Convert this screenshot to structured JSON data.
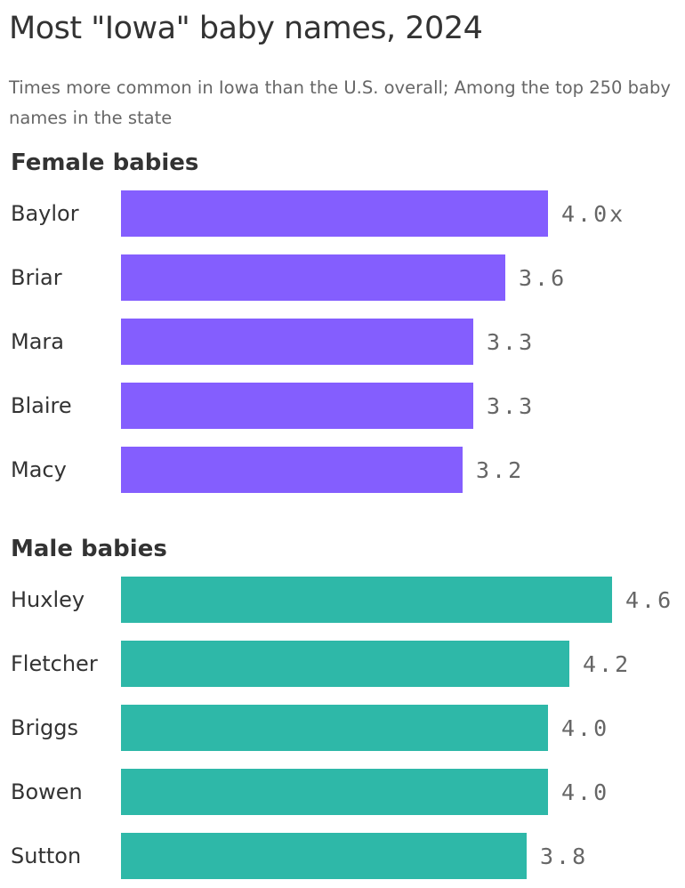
{
  "title": "Most \"Iowa\" baby names, 2024",
  "subtitle": "Times more common in Iowa than the U.S. overall; Among the top 250 baby names in the state",
  "colors": {
    "female": "#845EFE",
    "male": "#2EB8A8"
  },
  "chart_data": [
    {
      "type": "bar",
      "orientation": "horizontal",
      "title": "Female babies",
      "categories": [
        "Baylor",
        "Briar",
        "Mara",
        "Blaire",
        "Macy"
      ],
      "values": [
        4.0,
        3.6,
        3.3,
        3.3,
        3.2
      ],
      "value_labels": [
        "4.0x",
        "3.6",
        "3.3",
        "3.3",
        "3.2"
      ],
      "xlim": [
        0,
        4.6
      ]
    },
    {
      "type": "bar",
      "orientation": "horizontal",
      "title": "Male babies",
      "categories": [
        "Huxley",
        "Fletcher",
        "Briggs",
        "Bowen",
        "Sutton"
      ],
      "values": [
        4.6,
        4.2,
        4.0,
        4.0,
        3.8
      ],
      "value_labels": [
        "4.6",
        "4.2",
        "4.0",
        "4.0",
        "3.8"
      ],
      "xlim": [
        0,
        4.6
      ]
    }
  ]
}
